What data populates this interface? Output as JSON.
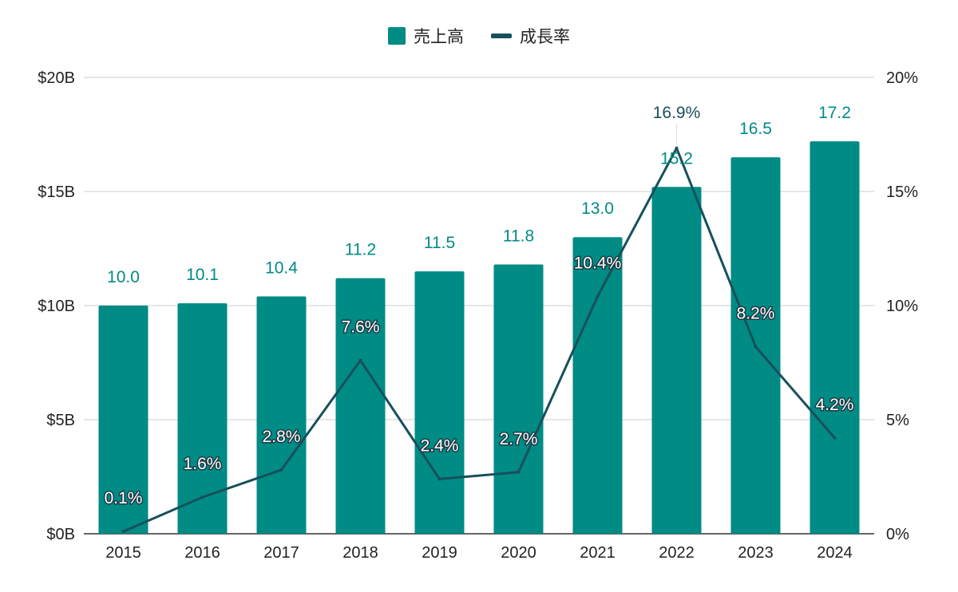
{
  "chart_data": {
    "type": "bar+line",
    "categories": [
      "2015",
      "2016",
      "2017",
      "2018",
      "2019",
      "2020",
      "2021",
      "2022",
      "2023",
      "2024"
    ],
    "series": [
      {
        "name": "売上高",
        "type": "bar",
        "axis": "left",
        "values": [
          10.0,
          10.1,
          10.4,
          11.2,
          11.5,
          11.8,
          13.0,
          15.2,
          16.5,
          17.2
        ],
        "labels": [
          "10.0",
          "10.1",
          "10.4",
          "11.2",
          "11.5",
          "11.8",
          "13.0",
          "15.2",
          "16.5",
          "17.2"
        ],
        "color": "#008b85"
      },
      {
        "name": "成長率",
        "type": "line",
        "axis": "right",
        "values": [
          0.1,
          1.6,
          2.8,
          7.6,
          2.4,
          2.7,
          10.4,
          16.9,
          8.2,
          4.2
        ],
        "labels": [
          "0.1%",
          "1.6%",
          "2.8%",
          "7.6%",
          "2.4%",
          "2.7%",
          "10.4%",
          "16.9%",
          "8.2%",
          "4.2%"
        ],
        "color": "#17505b"
      }
    ],
    "y_left": {
      "ylim": [
        0,
        20
      ],
      "ticks": [
        0,
        5,
        10,
        15,
        20
      ],
      "tick_labels": [
        "$0B",
        "$5B",
        "$10B",
        "$15B",
        "$20B"
      ]
    },
    "y_right": {
      "ylim": [
        0,
        20
      ],
      "ticks": [
        0,
        5,
        10,
        15,
        20
      ],
      "tick_labels": [
        "0%",
        "5%",
        "10%",
        "15%",
        "20%"
      ]
    },
    "grid": true,
    "legend_position": "top-center",
    "title": "",
    "xlabel": "",
    "ylabel": ""
  }
}
